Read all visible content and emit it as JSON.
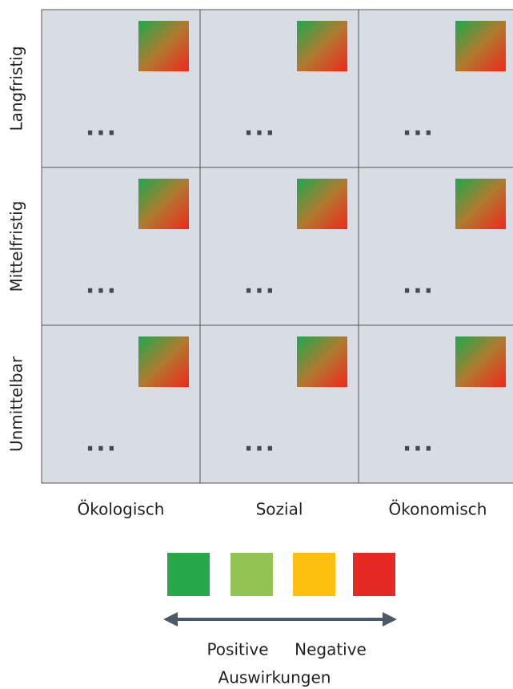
{
  "rows": [
    "Langfristig",
    "Mittelfristig",
    "Unmittelbar"
  ],
  "columns": [
    "Ökologisch",
    "Sozial",
    "Ökonomisch"
  ],
  "cells": [
    [
      "...",
      "...",
      "..."
    ],
    [
      "...",
      "...",
      "..."
    ],
    [
      "...",
      "...",
      "..."
    ]
  ],
  "legend": {
    "colors": [
      "#27a84a",
      "#92c353",
      "#fdc00f",
      "#e52a23"
    ],
    "left_label": "Positive",
    "right_label": "Negative",
    "caption": "Auswirkungen"
  }
}
